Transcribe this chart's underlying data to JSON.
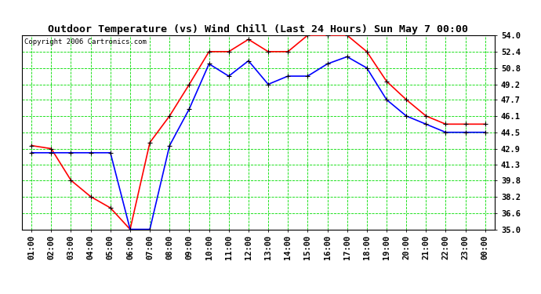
{
  "title": "Outdoor Temperature (vs) Wind Chill (Last 24 Hours) Sun May 7 00:00",
  "copyright": "Copyright 2006 Cartronics.com",
  "x_labels": [
    "01:00",
    "02:00",
    "03:00",
    "04:00",
    "05:00",
    "06:00",
    "07:00",
    "08:00",
    "09:00",
    "10:00",
    "11:00",
    "12:00",
    "13:00",
    "14:00",
    "15:00",
    "16:00",
    "17:00",
    "18:00",
    "19:00",
    "20:00",
    "21:00",
    "22:00",
    "23:00",
    "00:00"
  ],
  "temp_red": [
    43.2,
    42.9,
    39.8,
    38.2,
    37.1,
    35.0,
    43.5,
    46.1,
    49.2,
    52.4,
    52.4,
    53.6,
    52.4,
    52.4,
    54.0,
    54.0,
    54.0,
    52.4,
    49.5,
    47.7,
    46.1,
    45.3,
    45.3,
    45.3
  ],
  "temp_blue": [
    42.5,
    42.5,
    42.5,
    42.5,
    42.5,
    35.0,
    35.0,
    43.2,
    46.8,
    51.2,
    50.0,
    51.5,
    49.2,
    50.0,
    50.0,
    51.2,
    51.9,
    50.8,
    47.7,
    46.1,
    45.3,
    44.5,
    44.5,
    44.5
  ],
  "ylim_min": 35.0,
  "ylim_max": 54.0,
  "yticks": [
    35.0,
    36.6,
    38.2,
    39.8,
    41.3,
    42.9,
    44.5,
    46.1,
    47.7,
    49.2,
    50.8,
    52.4,
    54.0
  ],
  "bg_color": "#ffffff",
  "plot_bg_color": "#ffffff",
  "grid_color": "#00dd00",
  "red_color": "#ff0000",
  "blue_color": "#0000ff",
  "marker_color": "#000000",
  "title_fontsize": 9.5,
  "tick_fontsize": 7.5,
  "copyright_fontsize": 6.5
}
